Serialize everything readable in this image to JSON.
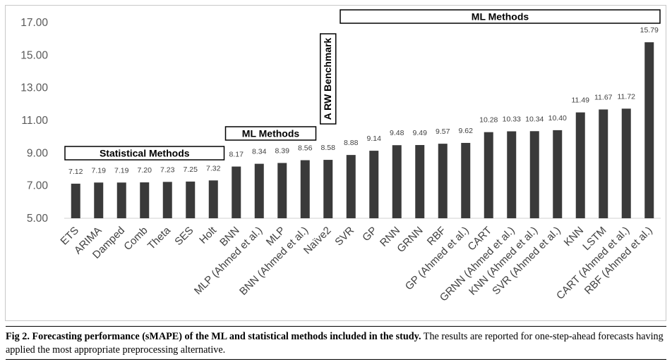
{
  "chart_data": {
    "type": "bar",
    "title": "",
    "xlabel": "",
    "ylabel": "",
    "ylim": [
      5.0,
      17.0
    ],
    "yticks": [
      "5.00",
      "7.00",
      "9.00",
      "11.00",
      "13.00",
      "15.00",
      "17.00"
    ],
    "grid": false,
    "bar_color": "#3a3a3a",
    "categories": [
      "ETS",
      "ARIMA",
      "Damped",
      "Comb",
      "Theta",
      "SES",
      "Holt",
      "BNN",
      "MLP (Ahmed et al.)",
      "MLP",
      "BNN (Ahmed et al.)",
      "Naïve2",
      "SVR",
      "GP",
      "RNN",
      "GRNN",
      "RBF",
      "GP (Ahmed et al.)",
      "CART",
      "GRNN (Ahmed et al.)",
      "KNN (Ahmed et al.)",
      "SVR (Ahmed et al.)",
      "KNN",
      "LSTM",
      "CART (Ahmed et al.)",
      "RBF (Ahmed et al.)"
    ],
    "values": [
      7.12,
      7.19,
      7.19,
      7.2,
      7.23,
      7.25,
      7.32,
      8.17,
      8.34,
      8.39,
      8.56,
      8.58,
      8.88,
      9.14,
      9.48,
      9.49,
      9.57,
      9.62,
      10.28,
      10.33,
      10.34,
      10.4,
      11.49,
      11.67,
      11.72,
      15.79
    ],
    "value_labels": [
      "7.12",
      "7.19",
      "7.19",
      "7.20",
      "7.23",
      "7.25",
      "7.32",
      "8.17",
      "8.34",
      "8.39",
      "8.56",
      "8.58",
      "8.88",
      "9.14",
      "9.48",
      "9.49",
      "9.57",
      "9.62",
      "10.28",
      "10.33",
      "10.34",
      "10.40",
      "11.49",
      "11.67",
      "11.72",
      "15.79"
    ],
    "groups": [
      {
        "label": "Statistical Methods",
        "from": 0,
        "to": 6
      },
      {
        "label": "ML Methods",
        "from": 7,
        "to": 10
      },
      {
        "label": "A RW Benchmark",
        "from": 11,
        "to": 11
      },
      {
        "label": "ML Methods",
        "from": 12,
        "to": 25
      }
    ]
  },
  "caption": {
    "fig": "Fig 2.",
    "title": "Forecasting performance (sMAPE) of the ML and statistical methods included in the study.",
    "text": "The results are reported for one-step-ahead forecasts having applied the most appropriate preprocessing alternative."
  }
}
